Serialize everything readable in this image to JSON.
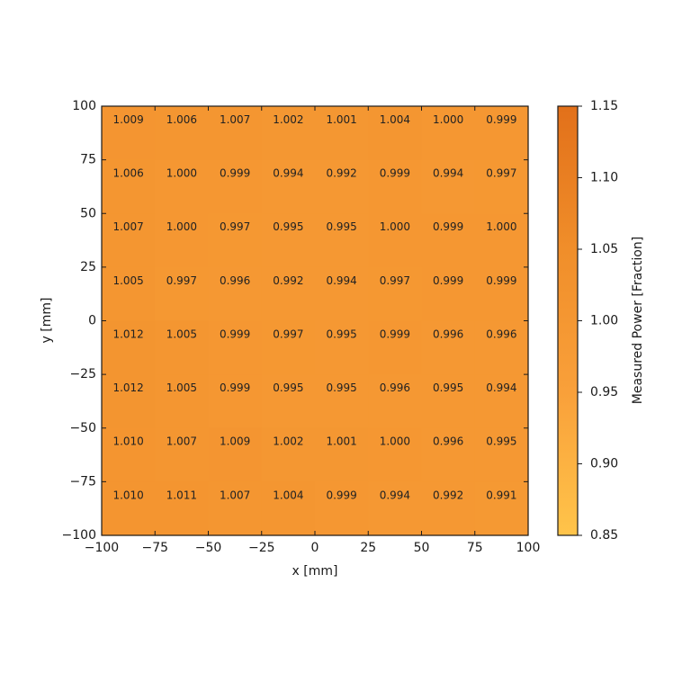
{
  "chart_data": {
    "type": "heatmap",
    "xlabel": "x [mm]",
    "ylabel": "y [mm]",
    "xlim": [
      -100,
      100
    ],
    "ylim": [
      -100,
      100
    ],
    "xticks": [
      "−100",
      "−75",
      "−50",
      "−25",
      "0",
      "25",
      "50",
      "75",
      "100"
    ],
    "yticks": [
      "−100",
      "−75",
      "−50",
      "−25",
      "0",
      "25",
      "50",
      "75",
      "100"
    ],
    "x_centers": [
      -87.5,
      -62.5,
      -37.5,
      -12.5,
      12.5,
      37.5,
      62.5,
      87.5
    ],
    "y_centers": [
      87.5,
      62.5,
      37.5,
      12.5,
      -12.5,
      -37.5,
      -62.5,
      -87.5
    ],
    "values": [
      [
        1.009,
        1.006,
        1.007,
        1.002,
        1.001,
        1.004,
        1.0,
        0.999
      ],
      [
        1.006,
        1.0,
        0.999,
        0.994,
        0.992,
        0.999,
        0.994,
        0.997
      ],
      [
        1.007,
        1.0,
        0.997,
        0.995,
        0.995,
        1.0,
        0.999,
        1.0
      ],
      [
        1.005,
        0.997,
        0.996,
        0.992,
        0.994,
        0.997,
        0.999,
        0.999
      ],
      [
        1.012,
        1.005,
        0.999,
        0.997,
        0.995,
        0.999,
        0.996,
        0.996
      ],
      [
        1.012,
        1.005,
        0.999,
        0.995,
        0.995,
        0.996,
        0.995,
        0.994
      ],
      [
        1.01,
        1.007,
        1.009,
        1.002,
        1.001,
        1.0,
        0.996,
        0.995
      ],
      [
        1.01,
        1.011,
        1.007,
        1.004,
        0.999,
        0.994,
        0.992,
        0.991
      ]
    ],
    "labels": [
      [
        "1.009",
        "1.006",
        "1.007",
        "1.002",
        "1.001",
        "1.004",
        "1.000",
        "0.999"
      ],
      [
        "1.006",
        "1.000",
        "0.999",
        "0.994",
        "0.992",
        "0.999",
        "0.994",
        "0.997"
      ],
      [
        "1.007",
        "1.000",
        "0.997",
        "0.995",
        "0.995",
        "1.000",
        "0.999",
        "1.000"
      ],
      [
        "1.005",
        "0.997",
        "0.996",
        "0.992",
        "0.994",
        "0.997",
        "0.999",
        "0.999"
      ],
      [
        "1.012",
        "1.005",
        "0.999",
        "0.997",
        "0.995",
        "0.999",
        "0.996",
        "0.996"
      ],
      [
        "1.012",
        "1.005",
        "0.999",
        "0.995",
        "0.995",
        "0.996",
        "0.995",
        "0.994"
      ],
      [
        "1.010",
        "1.007",
        "1.009",
        "1.002",
        "1.001",
        "1.000",
        "0.996",
        "0.995"
      ],
      [
        "1.010",
        "1.011",
        "1.007",
        "1.004",
        "0.999",
        "0.994",
        "0.992",
        "0.991"
      ]
    ],
    "colorbar": {
      "label": "Measured Power [Fraction]",
      "range": [
        0.85,
        1.15
      ],
      "ticks": [
        "0.85",
        "0.90",
        "0.95",
        "1.00",
        "1.05",
        "1.10",
        "1.15"
      ],
      "colors": [
        "#FFC44A",
        "#F9A03A",
        "#F08E2A",
        "#E2701A"
      ]
    },
    "grid": false
  }
}
